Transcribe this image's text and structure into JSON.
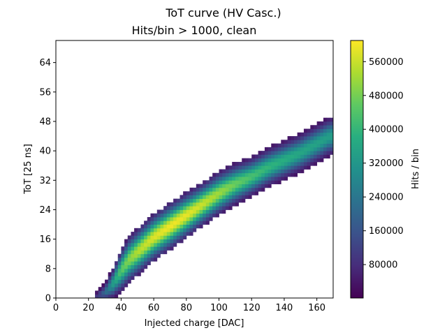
{
  "chart_data": {
    "type": "heatmap",
    "suptitle": "ToT curve (HV Casc.)",
    "title": "Hits/bin > 1000, clean",
    "xlabel": "Injected charge [DAC]",
    "ylabel": "ToT [25 ns]",
    "xlim": [
      0,
      170
    ],
    "ylim": [
      0,
      70
    ],
    "xticks": [
      0,
      20,
      40,
      60,
      80,
      100,
      120,
      140,
      160
    ],
    "yticks": [
      0,
      8,
      16,
      24,
      32,
      40,
      48,
      56,
      64
    ],
    "colormap": "viridis",
    "colorbar": {
      "label": "Hits / bin",
      "range": [
        1000,
        610000
      ],
      "ticks": [
        80000,
        160000,
        240000,
        320000,
        400000,
        480000,
        560000
      ]
    },
    "grid": false,
    "x_bin_width": 2,
    "y_bin_width": 1,
    "ridge": {
      "description": "peak ToT per injected charge (center of populated band)",
      "x": [
        25,
        30,
        35,
        40,
        45,
        50,
        60,
        70,
        80,
        90,
        100,
        110,
        120,
        130,
        140,
        150,
        160,
        168
      ],
      "tot_center": [
        0.5,
        1.5,
        4,
        7.5,
        10.5,
        12.5,
        16.5,
        19.5,
        22.5,
        25.5,
        28.5,
        31,
        33,
        35.5,
        37.5,
        39.5,
        42,
        44
      ],
      "band_halfwidth": [
        1.5,
        2.5,
        4,
        5.5,
        6,
        6,
        6,
        6,
        5.8,
        5.5,
        5.5,
        5.3,
        5,
        5,
        5,
        5,
        5,
        5
      ],
      "peak_hits": [
        100000,
        200000,
        340000,
        450000,
        500000,
        540000,
        580000,
        600000,
        590000,
        560000,
        520000,
        470000,
        430000,
        400000,
        380000,
        360000,
        350000,
        340000
      ]
    }
  }
}
